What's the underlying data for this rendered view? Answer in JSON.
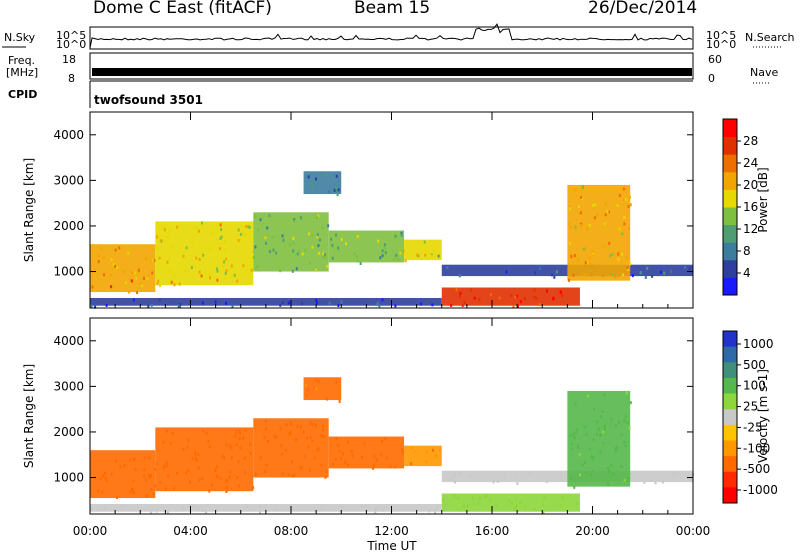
{
  "header": {
    "station": "Dome C East (fitACF)",
    "beam": "Beam 15",
    "date": "26/Dec/2014"
  },
  "top_panels": {
    "nsky_label": "N.Sky",
    "nsearch_label": "N.Search",
    "noise_ticks": [
      "10^5",
      "10^0"
    ],
    "freq_label": "Freq.",
    "freq_unit": "[MHz]",
    "freq_ticks": [
      "18",
      "8"
    ],
    "nave_label": "Nave",
    "nave_ticks": [
      "60",
      "0"
    ],
    "cpid_label": "CPID",
    "cpid_value": "twofsound 3501"
  },
  "colors": {
    "power": [
      "#1a1aff",
      "#2e3fa0",
      "#3c7d9e",
      "#4f9d72",
      "#7fbf3f",
      "#e6d800",
      "#f2a500",
      "#ee6e00",
      "#e03000",
      "#ff0000"
    ],
    "velocity": [
      "#2233cc",
      "#2e6aa8",
      "#3f8f7a",
      "#55b84a",
      "#8dd63b",
      "#c8c8c8",
      "#ffc400",
      "#ff9800",
      "#ff6a00",
      "#ff2a00",
      "#ff0000"
    ]
  },
  "chart_data": [
    {
      "type": "heatmap",
      "name": "power",
      "xlabel": "Time UT",
      "ylabel": "Slant Range [km]",
      "colorbar_label": "Power [dB]",
      "x_ticks": [
        "00:00",
        "04:00",
        "08:00",
        "12:00",
        "16:00",
        "20:00",
        "00:00"
      ],
      "y_ticks": [
        1000,
        2000,
        3000,
        4000
      ],
      "ylim": [
        200,
        4500
      ],
      "colorbar_ticks": [
        4,
        8,
        12,
        16,
        20,
        24,
        28
      ],
      "colorbar_range": [
        0,
        32
      ],
      "echo_regions": [
        {
          "t": [
            0.0,
            14.0
          ],
          "r": [
            250,
            420
          ],
          "level": 4
        },
        {
          "t": [
            0.0,
            2.6
          ],
          "r": [
            550,
            1600
          ],
          "level": 22
        },
        {
          "t": [
            2.6,
            6.5
          ],
          "r": [
            700,
            2100
          ],
          "level": 18
        },
        {
          "t": [
            6.5,
            9.5
          ],
          "r": [
            1000,
            2300
          ],
          "level": 14
        },
        {
          "t": [
            9.5,
            12.5
          ],
          "r": [
            1200,
            1900
          ],
          "level": 13
        },
        {
          "t": [
            12.5,
            14.0
          ],
          "r": [
            1250,
            1700
          ],
          "level": 16
        },
        {
          "t": [
            14.0,
            19.5
          ],
          "r": [
            250,
            650
          ],
          "level": 28
        },
        {
          "t": [
            14.0,
            24.0
          ],
          "r": [
            900,
            1150
          ],
          "level": 6
        },
        {
          "t": [
            19.0,
            21.5
          ],
          "r": [
            800,
            2900
          ],
          "level": 20
        },
        {
          "t": [
            8.5,
            10.0
          ],
          "r": [
            2700,
            3200
          ],
          "level": 8
        }
      ]
    },
    {
      "type": "heatmap",
      "name": "velocity",
      "xlabel": "Time UT",
      "ylabel": "Slant Range [km]",
      "colorbar_label": "Velocity [m s-1]",
      "x_ticks": [
        "00:00",
        "04:00",
        "08:00",
        "12:00",
        "16:00",
        "20:00",
        "00:00"
      ],
      "y_ticks": [
        1000,
        2000,
        3000,
        4000
      ],
      "ylim": [
        200,
        4500
      ],
      "colorbar_ticks": [
        "1000",
        "500",
        "100",
        "25",
        "-25",
        "-100",
        "-500",
        "-1000"
      ],
      "echo_regions": [
        {
          "t": [
            0.0,
            14.0
          ],
          "r": [
            250,
            420
          ],
          "level": 0
        },
        {
          "t": [
            0.0,
            2.6
          ],
          "r": [
            550,
            1600
          ],
          "level": -300
        },
        {
          "t": [
            2.6,
            6.5
          ],
          "r": [
            700,
            2100
          ],
          "level": -250
        },
        {
          "t": [
            6.5,
            9.5
          ],
          "r": [
            1000,
            2300
          ],
          "level": -200
        },
        {
          "t": [
            9.5,
            12.5
          ],
          "r": [
            1200,
            1900
          ],
          "level": -150
        },
        {
          "t": [
            12.5,
            14.0
          ],
          "r": [
            1250,
            1700
          ],
          "level": -80
        },
        {
          "t": [
            14.0,
            19.5
          ],
          "r": [
            250,
            650
          ],
          "level": 60
        },
        {
          "t": [
            14.0,
            24.0
          ],
          "r": [
            900,
            1150
          ],
          "level": 0
        },
        {
          "t": [
            19.0,
            21.5
          ],
          "r": [
            800,
            2900
          ],
          "level": 150
        },
        {
          "t": [
            8.5,
            10.0
          ],
          "r": [
            2700,
            3200
          ],
          "level": -120
        }
      ]
    }
  ]
}
